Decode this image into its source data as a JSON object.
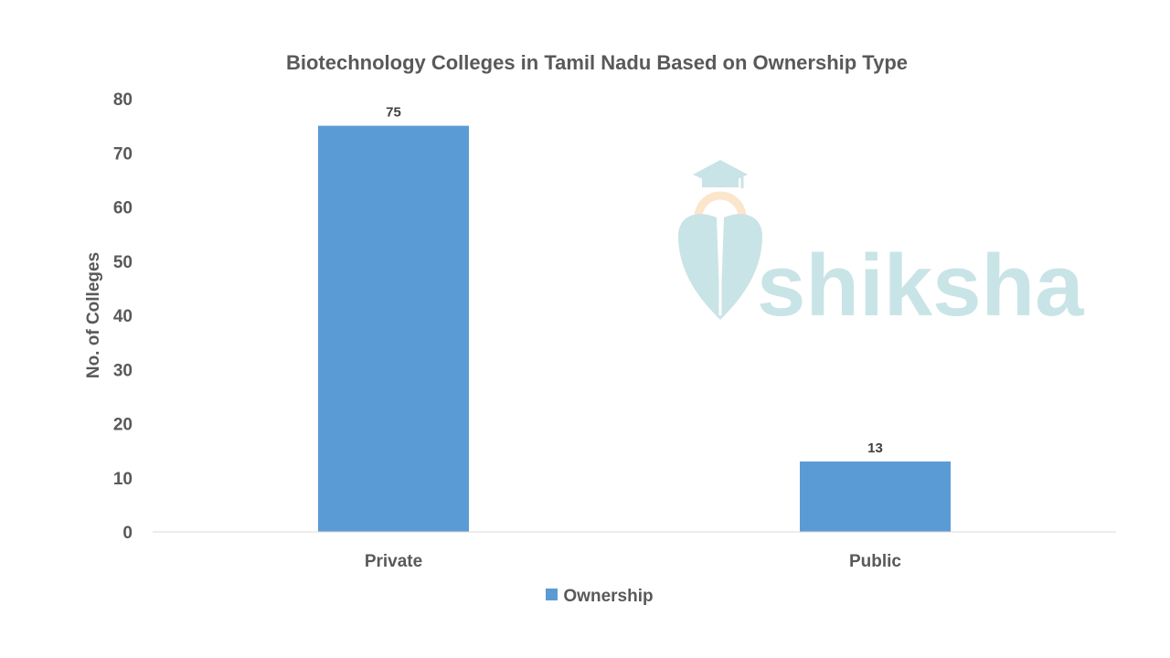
{
  "chart_data": {
    "type": "bar",
    "title": "Biotechnology Colleges in Tamil Nadu Based on Ownership Type",
    "xlabel": "",
    "ylabel": "No. of Colleges",
    "categories": [
      "Private",
      "Public"
    ],
    "series": [
      {
        "name": "Ownership",
        "values": [
          75,
          13
        ],
        "color": "#5b9bd5"
      }
    ],
    "data_labels": [
      "75",
      "13"
    ],
    "ylim": [
      0,
      80
    ],
    "yticks": [
      0,
      10,
      20,
      30,
      40,
      50,
      60,
      70,
      80
    ],
    "grid": false,
    "legend_position": "bottom"
  },
  "watermark": {
    "text": "shiksha",
    "color": "#c9e4e6",
    "icon": "graduation-cap-pen-logo"
  }
}
